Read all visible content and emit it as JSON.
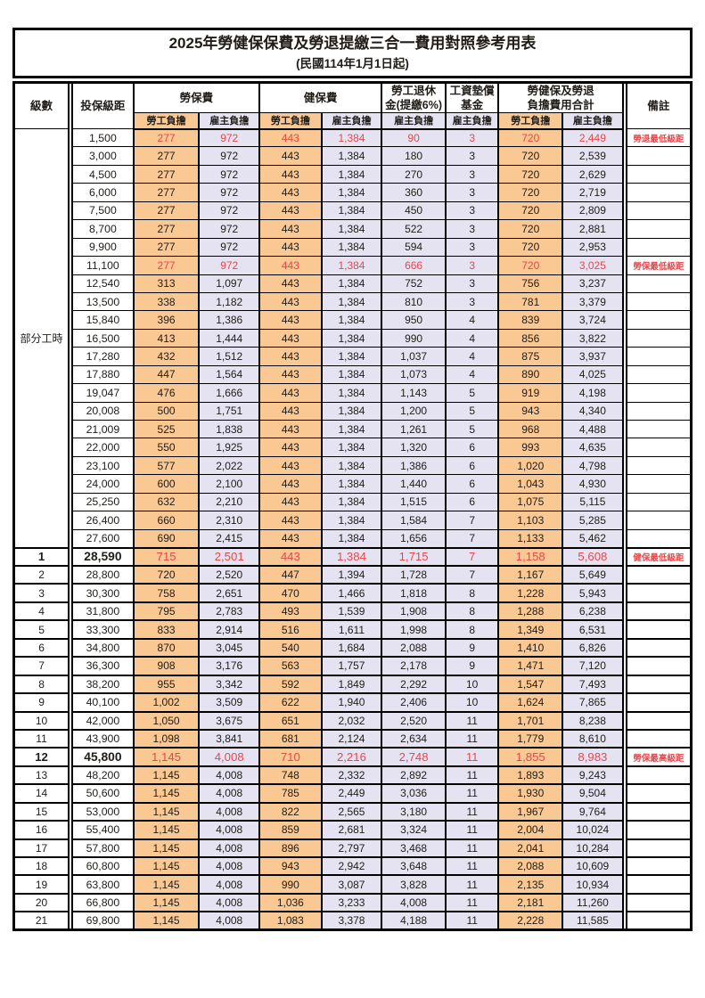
{
  "title": "2025年勞健保保費及勞退提繳三合一費用對照參考用表",
  "subtitle": "(民國114年1月1日起)",
  "colors": {
    "employee_fill": "#F9C893",
    "employer_fill": "#E5E3F2",
    "highlight_red": "#EC4549"
  },
  "header": {
    "level": "級數",
    "bracket": "投保級距",
    "labor_ins": "勞保費",
    "health_ins": "健保費",
    "pension_line1": "勞工退休",
    "pension_line2": "金(提繳6%)",
    "wage_fund_line1": "工資墊償",
    "wage_fund_line2": "基金",
    "total_line1": "勞健保及勞退",
    "total_line2": "負擔費用合計",
    "remark": "備註",
    "employee": "勞工負擔",
    "employer": "雇主負擔"
  },
  "part_time_label": "部分工時",
  "rows": [
    {
      "group": "pt",
      "bracket": "1,500",
      "values": [
        "277",
        "972",
        "443",
        "1,384",
        "90",
        "3",
        "720",
        "2,449"
      ],
      "remark": "勞退最低級距",
      "red": true,
      "emph": false
    },
    {
      "group": "pt",
      "bracket": "3,000",
      "values": [
        "277",
        "972",
        "443",
        "1,384",
        "180",
        "3",
        "720",
        "2,539"
      ],
      "remark": "",
      "red": false,
      "emph": false
    },
    {
      "group": "pt",
      "bracket": "4,500",
      "values": [
        "277",
        "972",
        "443",
        "1,384",
        "270",
        "3",
        "720",
        "2,629"
      ],
      "remark": "",
      "red": false,
      "emph": false
    },
    {
      "group": "pt",
      "bracket": "6,000",
      "values": [
        "277",
        "972",
        "443",
        "1,384",
        "360",
        "3",
        "720",
        "2,719"
      ],
      "remark": "",
      "red": false,
      "emph": false
    },
    {
      "group": "pt",
      "bracket": "7,500",
      "values": [
        "277",
        "972",
        "443",
        "1,384",
        "450",
        "3",
        "720",
        "2,809"
      ],
      "remark": "",
      "red": false,
      "emph": false
    },
    {
      "group": "pt",
      "bracket": "8,700",
      "values": [
        "277",
        "972",
        "443",
        "1,384",
        "522",
        "3",
        "720",
        "2,881"
      ],
      "remark": "",
      "red": false,
      "emph": false
    },
    {
      "group": "pt",
      "bracket": "9,900",
      "values": [
        "277",
        "972",
        "443",
        "1,384",
        "594",
        "3",
        "720",
        "2,953"
      ],
      "remark": "",
      "red": false,
      "emph": false
    },
    {
      "group": "pt",
      "bracket": "11,100",
      "values": [
        "277",
        "972",
        "443",
        "1,384",
        "666",
        "3",
        "720",
        "3,025"
      ],
      "remark": "勞保最低級距",
      "red": true,
      "emph": false
    },
    {
      "group": "pt",
      "bracket": "12,540",
      "values": [
        "313",
        "1,097",
        "443",
        "1,384",
        "752",
        "3",
        "756",
        "3,237"
      ],
      "remark": "",
      "red": false,
      "emph": false
    },
    {
      "group": "pt",
      "bracket": "13,500",
      "values": [
        "338",
        "1,182",
        "443",
        "1,384",
        "810",
        "3",
        "781",
        "3,379"
      ],
      "remark": "",
      "red": false,
      "emph": false
    },
    {
      "group": "pt",
      "bracket": "15,840",
      "values": [
        "396",
        "1,386",
        "443",
        "1,384",
        "950",
        "4",
        "839",
        "3,724"
      ],
      "remark": "",
      "red": false,
      "emph": false
    },
    {
      "group": "pt",
      "bracket": "16,500",
      "values": [
        "413",
        "1,444",
        "443",
        "1,384",
        "990",
        "4",
        "856",
        "3,822"
      ],
      "remark": "",
      "red": false,
      "emph": false
    },
    {
      "group": "pt",
      "bracket": "17,280",
      "values": [
        "432",
        "1,512",
        "443",
        "1,384",
        "1,037",
        "4",
        "875",
        "3,937"
      ],
      "remark": "",
      "red": false,
      "emph": false
    },
    {
      "group": "pt",
      "bracket": "17,880",
      "values": [
        "447",
        "1,564",
        "443",
        "1,384",
        "1,073",
        "4",
        "890",
        "4,025"
      ],
      "remark": "",
      "red": false,
      "emph": false
    },
    {
      "group": "pt",
      "bracket": "19,047",
      "values": [
        "476",
        "1,666",
        "443",
        "1,384",
        "1,143",
        "5",
        "919",
        "4,198"
      ],
      "remark": "",
      "red": false,
      "emph": false
    },
    {
      "group": "pt",
      "bracket": "20,008",
      "values": [
        "500",
        "1,751",
        "443",
        "1,384",
        "1,200",
        "5",
        "943",
        "4,340"
      ],
      "remark": "",
      "red": false,
      "emph": false
    },
    {
      "group": "pt",
      "bracket": "21,009",
      "values": [
        "525",
        "1,838",
        "443",
        "1,384",
        "1,261",
        "5",
        "968",
        "4,488"
      ],
      "remark": "",
      "red": false,
      "emph": false
    },
    {
      "group": "pt",
      "bracket": "22,000",
      "values": [
        "550",
        "1,925",
        "443",
        "1,384",
        "1,320",
        "6",
        "993",
        "4,635"
      ],
      "remark": "",
      "red": false,
      "emph": false
    },
    {
      "group": "pt",
      "bracket": "23,100",
      "values": [
        "577",
        "2,022",
        "443",
        "1,384",
        "1,386",
        "6",
        "1,020",
        "4,798"
      ],
      "remark": "",
      "red": false,
      "emph": false
    },
    {
      "group": "pt",
      "bracket": "24,000",
      "values": [
        "600",
        "2,100",
        "443",
        "1,384",
        "1,440",
        "6",
        "1,043",
        "4,930"
      ],
      "remark": "",
      "red": false,
      "emph": false
    },
    {
      "group": "pt",
      "bracket": "25,250",
      "values": [
        "632",
        "2,210",
        "443",
        "1,384",
        "1,515",
        "6",
        "1,075",
        "5,115"
      ],
      "remark": "",
      "red": false,
      "emph": false
    },
    {
      "group": "pt",
      "bracket": "26,400",
      "values": [
        "660",
        "2,310",
        "443",
        "1,384",
        "1,584",
        "7",
        "1,103",
        "5,285"
      ],
      "remark": "",
      "red": false,
      "emph": false
    },
    {
      "group": "pt",
      "bracket": "27,600",
      "values": [
        "690",
        "2,415",
        "443",
        "1,384",
        "1,656",
        "7",
        "1,133",
        "5,462"
      ],
      "remark": "",
      "red": false,
      "emph": false
    },
    {
      "group": "num",
      "level": "1",
      "bracket": "28,590",
      "values": [
        "715",
        "2,501",
        "443",
        "1,384",
        "1,715",
        "7",
        "1,158",
        "5,608"
      ],
      "remark": "健保最低級距",
      "red": true,
      "emph": true
    },
    {
      "group": "num",
      "level": "2",
      "bracket": "28,800",
      "values": [
        "720",
        "2,520",
        "447",
        "1,394",
        "1,728",
        "7",
        "1,167",
        "5,649"
      ],
      "remark": "",
      "red": false,
      "emph": false
    },
    {
      "group": "num",
      "level": "3",
      "bracket": "30,300",
      "values": [
        "758",
        "2,651",
        "470",
        "1,466",
        "1,818",
        "8",
        "1,228",
        "5,943"
      ],
      "remark": "",
      "red": false,
      "emph": false
    },
    {
      "group": "num",
      "level": "4",
      "bracket": "31,800",
      "values": [
        "795",
        "2,783",
        "493",
        "1,539",
        "1,908",
        "8",
        "1,288",
        "6,238"
      ],
      "remark": "",
      "red": false,
      "emph": false
    },
    {
      "group": "num",
      "level": "5",
      "bracket": "33,300",
      "values": [
        "833",
        "2,914",
        "516",
        "1,611",
        "1,998",
        "8",
        "1,349",
        "6,531"
      ],
      "remark": "",
      "red": false,
      "emph": false
    },
    {
      "group": "num",
      "level": "6",
      "bracket": "34,800",
      "values": [
        "870",
        "3,045",
        "540",
        "1,684",
        "2,088",
        "9",
        "1,410",
        "6,826"
      ],
      "remark": "",
      "red": false,
      "emph": false
    },
    {
      "group": "num",
      "level": "7",
      "bracket": "36,300",
      "values": [
        "908",
        "3,176",
        "563",
        "1,757",
        "2,178",
        "9",
        "1,471",
        "7,120"
      ],
      "remark": "",
      "red": false,
      "emph": false
    },
    {
      "group": "num",
      "level": "8",
      "bracket": "38,200",
      "values": [
        "955",
        "3,342",
        "592",
        "1,849",
        "2,292",
        "10",
        "1,547",
        "7,493"
      ],
      "remark": "",
      "red": false,
      "emph": false
    },
    {
      "group": "num",
      "level": "9",
      "bracket": "40,100",
      "values": [
        "1,002",
        "3,509",
        "622",
        "1,940",
        "2,406",
        "10",
        "1,624",
        "7,865"
      ],
      "remark": "",
      "red": false,
      "emph": false
    },
    {
      "group": "num",
      "level": "10",
      "bracket": "42,000",
      "values": [
        "1,050",
        "3,675",
        "651",
        "2,032",
        "2,520",
        "11",
        "1,701",
        "8,238"
      ],
      "remark": "",
      "red": false,
      "emph": false
    },
    {
      "group": "num",
      "level": "11",
      "bracket": "43,900",
      "values": [
        "1,098",
        "3,841",
        "681",
        "2,124",
        "2,634",
        "11",
        "1,779",
        "8,610"
      ],
      "remark": "",
      "red": false,
      "emph": false
    },
    {
      "group": "num",
      "level": "12",
      "bracket": "45,800",
      "values": [
        "1,145",
        "4,008",
        "710",
        "2,216",
        "2,748",
        "11",
        "1,855",
        "8,983"
      ],
      "remark": "勞保最高級距",
      "red": true,
      "emph": true
    },
    {
      "group": "num",
      "level": "13",
      "bracket": "48,200",
      "values": [
        "1,145",
        "4,008",
        "748",
        "2,332",
        "2,892",
        "11",
        "1,893",
        "9,243"
      ],
      "remark": "",
      "red": false,
      "emph": false
    },
    {
      "group": "num",
      "level": "14",
      "bracket": "50,600",
      "values": [
        "1,145",
        "4,008",
        "785",
        "2,449",
        "3,036",
        "11",
        "1,930",
        "9,504"
      ],
      "remark": "",
      "red": false,
      "emph": false
    },
    {
      "group": "num",
      "level": "15",
      "bracket": "53,000",
      "values": [
        "1,145",
        "4,008",
        "822",
        "2,565",
        "3,180",
        "11",
        "1,967",
        "9,764"
      ],
      "remark": "",
      "red": false,
      "emph": false
    },
    {
      "group": "num",
      "level": "16",
      "bracket": "55,400",
      "values": [
        "1,145",
        "4,008",
        "859",
        "2,681",
        "3,324",
        "11",
        "2,004",
        "10,024"
      ],
      "remark": "",
      "red": false,
      "emph": false
    },
    {
      "group": "num",
      "level": "17",
      "bracket": "57,800",
      "values": [
        "1,145",
        "4,008",
        "896",
        "2,797",
        "3,468",
        "11",
        "2,041",
        "10,284"
      ],
      "remark": "",
      "red": false,
      "emph": false
    },
    {
      "group": "num",
      "level": "18",
      "bracket": "60,800",
      "values": [
        "1,145",
        "4,008",
        "943",
        "2,942",
        "3,648",
        "11",
        "2,088",
        "10,609"
      ],
      "remark": "",
      "red": false,
      "emph": false
    },
    {
      "group": "num",
      "level": "19",
      "bracket": "63,800",
      "values": [
        "1,145",
        "4,008",
        "990",
        "3,087",
        "3,828",
        "11",
        "2,135",
        "10,934"
      ],
      "remark": "",
      "red": false,
      "emph": false
    },
    {
      "group": "num",
      "level": "20",
      "bracket": "66,800",
      "values": [
        "1,145",
        "4,008",
        "1,036",
        "3,233",
        "4,008",
        "11",
        "2,181",
        "11,260"
      ],
      "remark": "",
      "red": false,
      "emph": false
    },
    {
      "group": "num",
      "level": "21",
      "bracket": "69,800",
      "values": [
        "1,145",
        "4,008",
        "1,083",
        "3,378",
        "4,188",
        "11",
        "2,228",
        "11,585"
      ],
      "remark": "",
      "red": false,
      "emph": false
    }
  ]
}
